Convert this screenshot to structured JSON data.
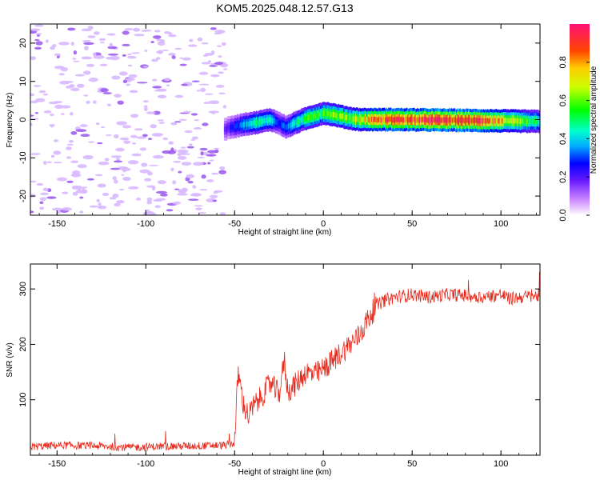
{
  "title": "KOM5.2025.048.12.57.G13",
  "colors": {
    "snr_line": "#e8291c",
    "spec_background_noise": "#d8b8ff",
    "spec_noise_dense": "#9955ee"
  },
  "chart_data": [
    {
      "type": "heatmap",
      "name": "spectrogram",
      "xlabel": "Height of straight line (km)",
      "ylabel": "Frequency (Hz)",
      "xlim": [
        -165,
        122
      ],
      "ylim": [
        -25,
        25
      ],
      "xticks": [
        -150,
        -100,
        -50,
        0,
        50,
        100
      ],
      "yticks": [
        -20,
        -10,
        0,
        10,
        20
      ],
      "grid": false,
      "colorbar": {
        "label": "Normalized spectral amplitude",
        "range": [
          0,
          1
        ],
        "ticks": [
          0.0,
          0.2,
          0.4,
          0.6,
          0.8
        ]
      },
      "signal_trace": {
        "x": [
          -56,
          -45,
          -38,
          -30,
          -25,
          -21,
          -15,
          -8,
          0,
          8,
          15,
          20,
          40,
          80,
          122
        ],
        "freq": [
          -2.5,
          -1.2,
          -0.8,
          0.0,
          -1.0,
          -2.0,
          -0.6,
          0.6,
          1.7,
          1.0,
          0.3,
          0.0,
          0.0,
          -0.2,
          -0.5
        ],
        "amplitude": [
          0.18,
          0.35,
          0.45,
          0.42,
          0.3,
          0.35,
          0.45,
          0.55,
          0.55,
          0.6,
          0.62,
          0.7,
          0.92,
          0.96,
          0.5
        ]
      },
      "noise_region_x": [
        -165,
        -55
      ]
    },
    {
      "type": "line",
      "name": "snr",
      "xlabel": "Height of straight line (km)",
      "ylabel": "SNR (v/v)",
      "xlim": [
        -165,
        122
      ],
      "ylim": [
        0,
        345
      ],
      "xticks": [
        -150,
        -100,
        -50,
        0,
        50,
        100
      ],
      "yticks": [
        100,
        200,
        300
      ],
      "grid": false,
      "series": [
        {
          "x": [
            -165,
            -150,
            -130,
            -110,
            -90,
            -70,
            -55,
            -50,
            -48,
            -45,
            -42,
            -40,
            -35,
            -30,
            -25,
            -22,
            -20,
            -15,
            -10,
            -5,
            0,
            5,
            10,
            15,
            20,
            25,
            30,
            35,
            40,
            50,
            60,
            70,
            80,
            90,
            100,
            105,
            110,
            122
          ],
          "y": [
            15,
            18,
            17,
            14,
            16,
            17,
            18,
            22,
            150,
            90,
            70,
            85,
            105,
            130,
            110,
            170,
            115,
            130,
            150,
            145,
            155,
            170,
            185,
            200,
            215,
            245,
            270,
            280,
            285,
            290,
            285,
            290,
            288,
            285,
            290,
            282,
            285,
            288
          ]
        }
      ]
    }
  ]
}
